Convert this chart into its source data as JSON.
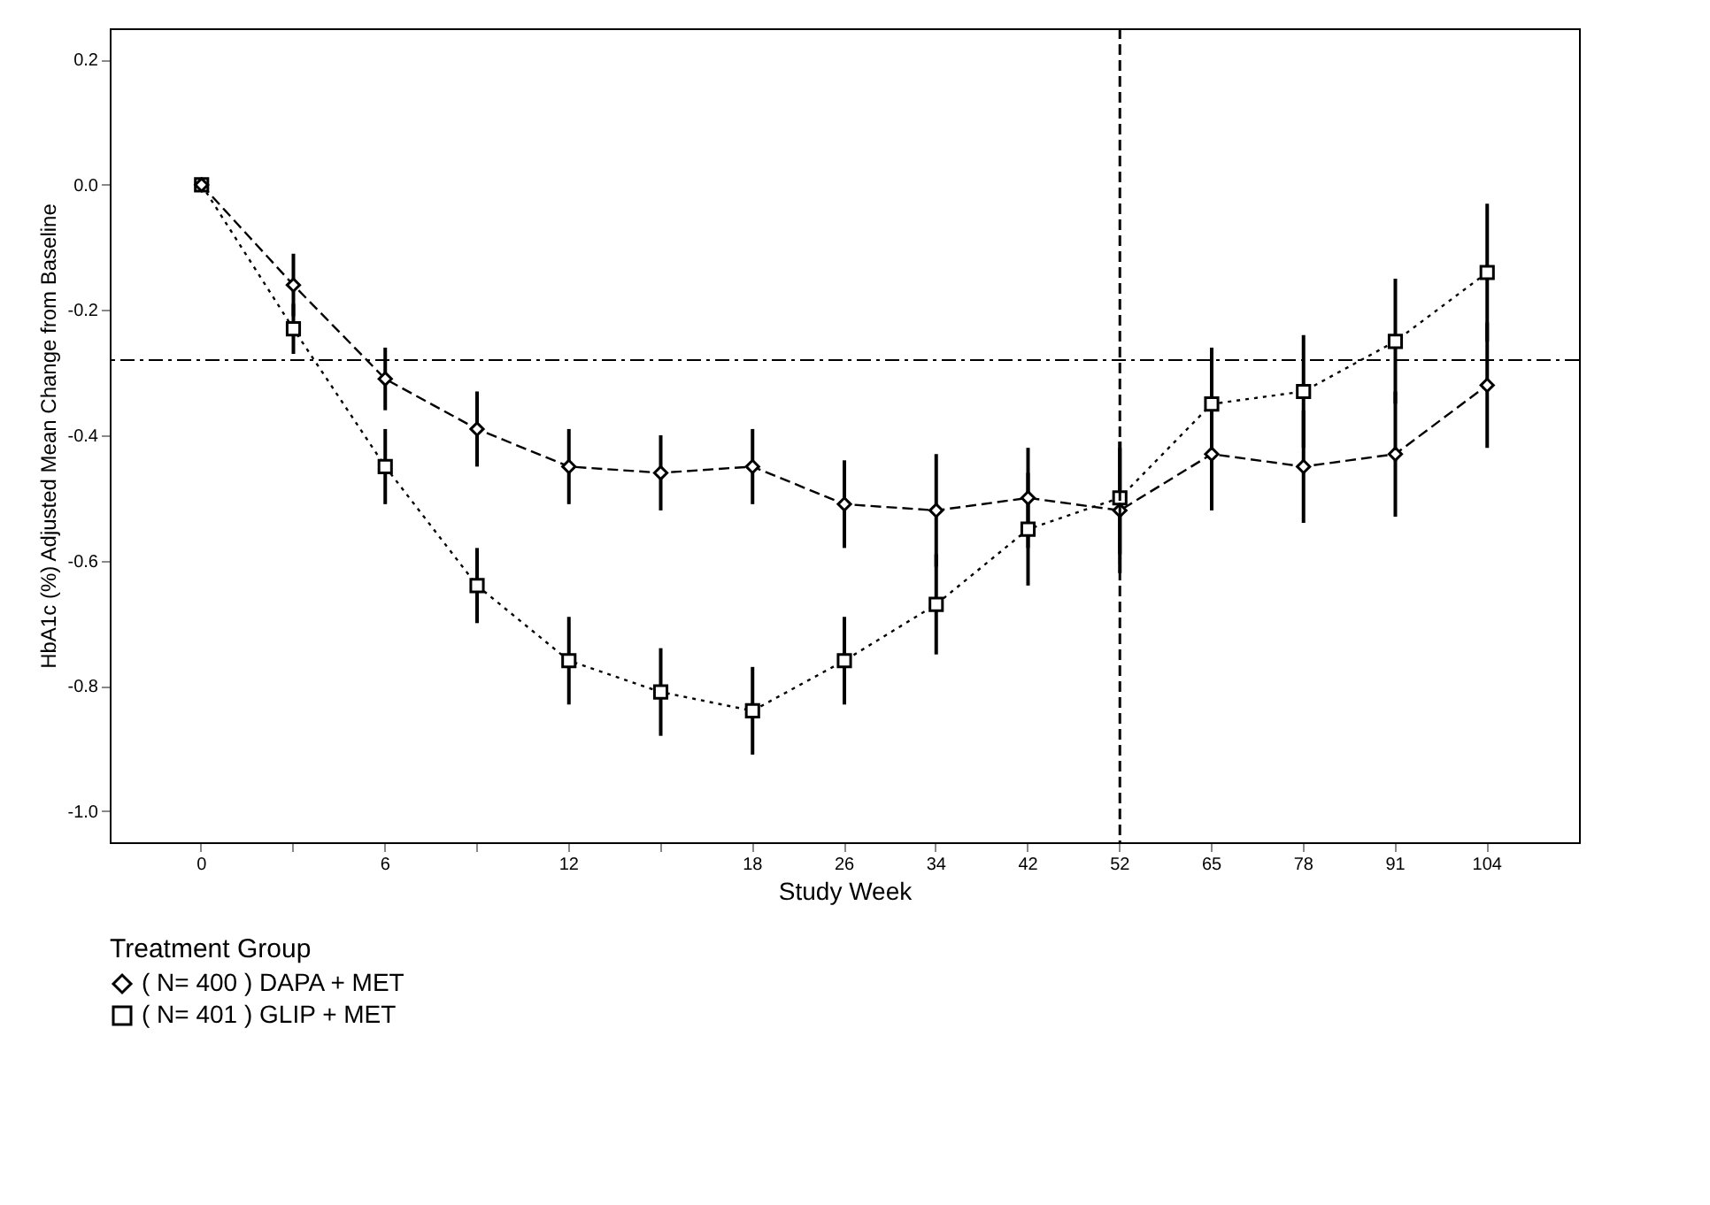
{
  "chart_data": {
    "type": "line",
    "xlabel": "Study Week",
    "ylabel": "HbA1c (%) Adjusted Mean Change from Baseline",
    "legend_title": "Treatment Group",
    "categories": [
      "0",
      null,
      "6",
      null,
      "12",
      null,
      "18",
      "26",
      "34",
      "42",
      "52",
      "65",
      "78",
      "91",
      "104"
    ],
    "series": [
      {
        "name": "( N= 400 ) DAPA + MET",
        "color": "#000000",
        "marker": "diamond",
        "line_style": "dashed",
        "values": [
          0.0,
          -0.16,
          -0.31,
          -0.39,
          -0.45,
          -0.46,
          -0.45,
          -0.51,
          -0.52,
          -0.5,
          -0.52,
          -0.43,
          -0.45,
          -0.43,
          -0.32
        ],
        "errors": [
          null,
          0.05,
          0.05,
          0.06,
          0.06,
          0.06,
          0.06,
          0.07,
          0.09,
          0.08,
          0.1,
          0.09,
          0.09,
          0.1,
          0.1
        ]
      },
      {
        "name": "( N= 401 ) GLIP + MET",
        "color": "#000000",
        "marker": "square",
        "line_style": "dotted",
        "values": [
          0.0,
          -0.23,
          -0.45,
          -0.64,
          -0.76,
          -0.81,
          -0.84,
          -0.76,
          -0.67,
          -0.55,
          -0.5,
          -0.35,
          -0.33,
          -0.25,
          -0.14
        ],
        "errors": [
          null,
          0.04,
          0.06,
          0.06,
          0.07,
          0.07,
          0.07,
          0.07,
          0.08,
          0.09,
          0.09,
          0.09,
          0.09,
          0.1,
          0.11
        ]
      }
    ],
    "ylim": [
      -1.05,
      0.25
    ],
    "yticks": [
      0.2,
      {
        "value": 0,
        "label": "0.0"
      },
      -0.2,
      -0.4,
      -0.6,
      -0.8,
      {
        "value": -1,
        "label": "-1.0"
      }
    ],
    "ref_lines": [
      {
        "axis": "y",
        "value": -0.28,
        "line_style": "dashdot"
      },
      {
        "axis": "x",
        "value": "52",
        "line_style": "dashed"
      }
    ],
    "legend": "bottom",
    "grid": false
  }
}
